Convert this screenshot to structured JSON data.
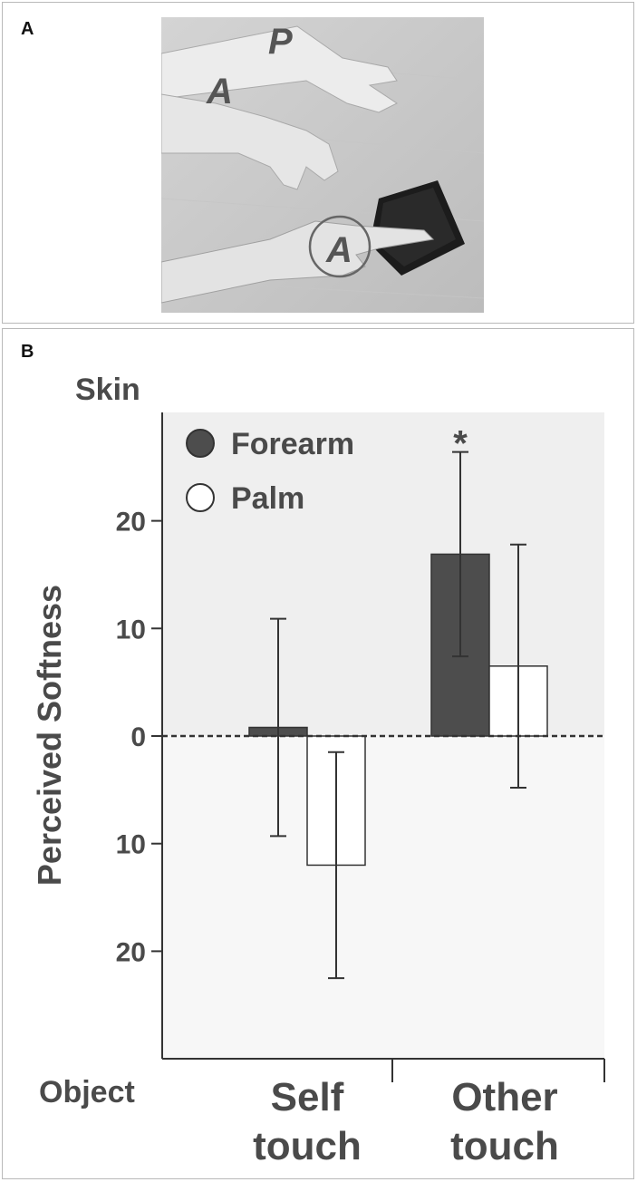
{
  "panels": {
    "a_label": "A",
    "b_label": "B"
  },
  "photo": {
    "markers": [
      "A",
      "P",
      "A"
    ],
    "description_icon": "hands-touching-fabric-photo"
  },
  "chart_data": {
    "type": "bar",
    "categories": [
      "Self\ntouch",
      "Other\ntouch"
    ],
    "category_lines": [
      [
        "Self",
        "touch"
      ],
      [
        "Other",
        "touch"
      ]
    ],
    "series": [
      {
        "name": "Forearm",
        "values": [
          0.8,
          16.9
        ],
        "err_upper": [
          10.1,
          9.5
        ],
        "err_lower": [
          10.1,
          9.5
        ],
        "color": "#4d4d4d"
      },
      {
        "name": "Palm",
        "values": [
          -12.0,
          6.5
        ],
        "err_upper": [
          10.5,
          11.3
        ],
        "err_lower": [
          10.5,
          11.3
        ],
        "color": "#ffffff"
      }
    ],
    "ylabel": "Perceived Softness",
    "top_label": "Skin",
    "bottom_label": "Object",
    "yticks": [
      20,
      10,
      0,
      -10,
      -20
    ],
    "ytick_labels": [
      "20",
      "10",
      "0",
      "10",
      "20"
    ],
    "ylim": [
      -30,
      30
    ],
    "significance": [
      {
        "category": 1,
        "series": 0,
        "mark": "*"
      }
    ],
    "legend_position": "top-left",
    "background_upper": "#efefef",
    "background_lower": "#f7f7f7"
  }
}
